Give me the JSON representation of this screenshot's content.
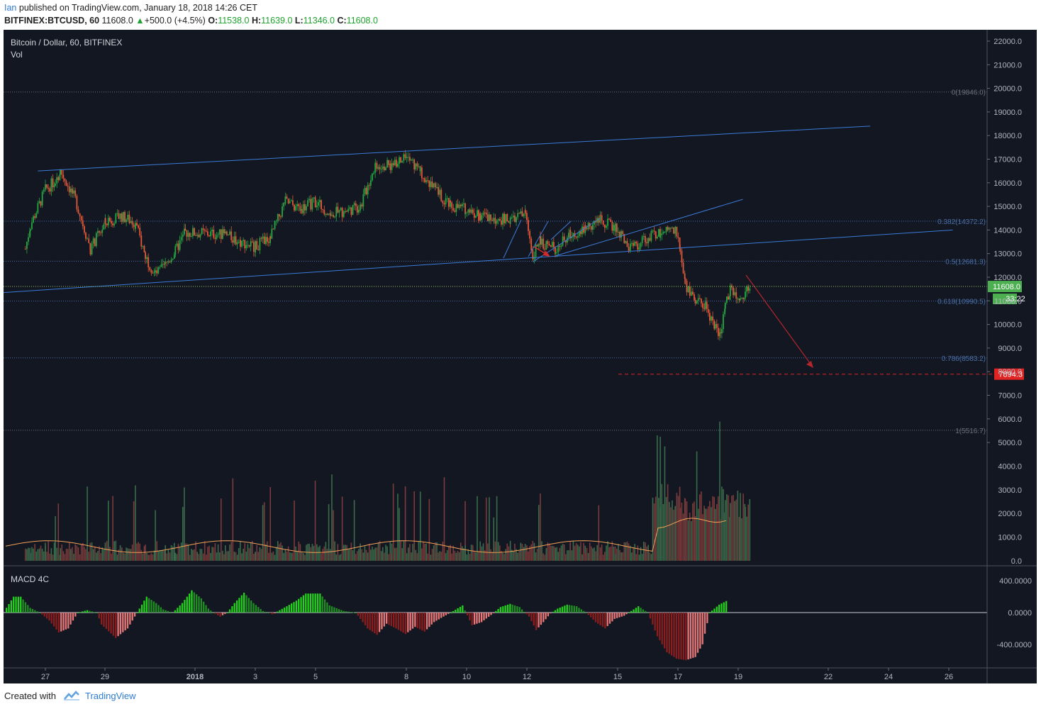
{
  "header": {
    "user": "Ian",
    "published": "published on TradingView.com, January 18, 2018 14:26 CET",
    "symbol": "BITFINEX:BTCUSD, 60",
    "last": "11608.0",
    "change_arrow": "▲",
    "change": "+500.0 (+4.5%)",
    "o_label": "O:",
    "o": "11538.0",
    "h_label": "H:",
    "h": "11639.0",
    "l_label": "L:",
    "l": "11346.0",
    "c_label": "C:",
    "c": "11608.0"
  },
  "legend": {
    "title": "Bitcoin / Dollar, 60, BITFINEX",
    "vol": "Vol",
    "macd": "MACD 4C"
  },
  "footer": {
    "created": "Created with",
    "brand": "TradingView",
    "logo_icon": "tradingview-logo-icon"
  },
  "colors": {
    "bg": "#131722",
    "up": "#26a641",
    "down": "#e05a3a",
    "trend": "#3c7bd8",
    "fib": "#4a6fa8",
    "target": "#e02424",
    "macd_green": "#21d11a",
    "macd_red": "#b83b3b"
  },
  "chart_data": {
    "type": "candlestick",
    "title": "Bitcoin / Dollar, 60, BITFINEX",
    "price_axis": {
      "range": [
        4000,
        22000
      ],
      "ticks": [
        "22000.0",
        "21000.0",
        "20000.0",
        "19000.0",
        "18000.0",
        "17000.0",
        "16000.0",
        "15000.0",
        "14000.0",
        "13000.0",
        "12000.0",
        "11000.0",
        "10000.0",
        "9000.0",
        "8000.0",
        "7000.0",
        "6000.0",
        "5000.0"
      ]
    },
    "volume_axis": {
      "range": [
        0,
        5000
      ],
      "ticks": [
        "4000.0",
        "3000.0",
        "2000.0",
        "1000.0",
        "0.0"
      ]
    },
    "macd_axis": {
      "ticks": [
        "400.0000",
        "0.0000",
        "-400.0000"
      ]
    },
    "x_ticks": [
      "27",
      "29",
      "2018",
      "3",
      "5",
      "8",
      "10",
      "12",
      "15",
      "17",
      "19",
      "22",
      "24",
      "26"
    ],
    "price_path": [
      [
        "Dec 26 08:00",
        13200
      ],
      [
        "Dec 26 12:00",
        14200
      ],
      [
        "Dec 27 00:00",
        15700
      ],
      [
        "Dec 27 08:00",
        16100
      ],
      [
        "Dec 27 12:00",
        16500
      ],
      [
        "Dec 28 00:00",
        15300
      ],
      [
        "Dec 28 12:00",
        13200
      ],
      [
        "Dec 29 00:00",
        14300
      ],
      [
        "Dec 29 12:00",
        14600
      ],
      [
        "Dec 30 00:00",
        14300
      ],
      [
        "Dec 30 08:00",
        12900
      ],
      [
        "Dec 30 16:00",
        12100
      ],
      [
        "Dec 31 00:00",
        12500
      ],
      [
        "Dec 31 08:00",
        13100
      ],
      [
        "Dec 31 16:00",
        13900
      ],
      [
        "Jan 1 00:00",
        13800
      ],
      [
        "Jan 1 12:00",
        13500
      ],
      [
        "Jan 2 00:00",
        13300
      ],
      [
        "Jan 2 12:00",
        13700
      ],
      [
        "Jan 3 00:00",
        15200
      ],
      [
        "Jan 3 12:00",
        14900
      ],
      [
        "Jan 4 00:00",
        15200
      ],
      [
        "Jan 4 12:00",
        14700
      ],
      [
        "Jan 5 00:00",
        14800
      ],
      [
        "Jan 5 12:00",
        15000
      ],
      [
        "Jan 6 00:00",
        16800
      ],
      [
        "Jan 6 12:00",
        16700
      ],
      [
        "Jan 7 00:00",
        17100
      ],
      [
        "Jan 7 12:00",
        16500
      ],
      [
        "Jan 8 00:00",
        15700
      ],
      [
        "Jan 8 12:00",
        15000
      ],
      [
        "Jan 9 00:00",
        14900
      ],
      [
        "Jan 9 12:00",
        14600
      ],
      [
        "Jan 10 00:00",
        14500
      ],
      [
        "Jan 10 12:00",
        14400
      ],
      [
        "Jan 11 00:00",
        14700
      ],
      [
        "Jan 11 06:00",
        13000
      ],
      [
        "Jan 11 12:00",
        13500
      ],
      [
        "Jan 12 00:00",
        13200
      ],
      [
        "Jan 12 12:00",
        13800
      ],
      [
        "Jan 13 00:00",
        14100
      ],
      [
        "Jan 13 12:00",
        14400
      ],
      [
        "Jan 14 00:00",
        14100
      ],
      [
        "Jan 14 12:00",
        13200
      ],
      [
        "Jan 15 00:00",
        13600
      ],
      [
        "Jan 15 12:00",
        13900
      ],
      [
        "Jan 16 00:00",
        14100
      ],
      [
        "Jan 16 04:00",
        13100
      ],
      [
        "Jan 16 08:00",
        11700
      ],
      [
        "Jan 16 16:00",
        11000
      ],
      [
        "Jan 17 00:00",
        10800
      ],
      [
        "Jan 17 08:00",
        9900
      ],
      [
        "Jan 17 12:00",
        9500
      ],
      [
        "Jan 17 16:00",
        10800
      ],
      [
        "Jan 17 20:00",
        11500
      ],
      [
        "Jan 18 04:00",
        11000
      ],
      [
        "Jan 18 08:00",
        11400
      ],
      [
        "Jan 18 12:00",
        11608
      ]
    ],
    "fib_levels": [
      {
        "label": "0(19846.0)",
        "value": 19846.0
      },
      {
        "label": "0.382(14372.2)",
        "value": 14372.2
      },
      {
        "label": "0.5(12681.3)",
        "value": 12681.3
      },
      {
        "label": "0.618(10990.5)",
        "value": 10990.5
      },
      {
        "label": "0.786(8583.2)",
        "value": 8583.2
      },
      {
        "label": "1(5516.7)",
        "value": 5516.7
      }
    ],
    "last_price": {
      "label": "11608.0",
      "value": 11608.0,
      "countdown": "33:22"
    },
    "target": {
      "label": "7894.3",
      "value": 7894.3
    },
    "trendlines": [
      {
        "from": [
          "Dec 26 18:00",
          16500
        ],
        "to": [
          "Jan 22 12:00",
          18400
        ]
      },
      {
        "from": [
          "Dec 25 00:00",
          11300
        ],
        "to": [
          "Jan 25 06:00",
          14000
        ]
      },
      {
        "from": [
          "Jan 11 06:00",
          12650
        ],
        "to": [
          "Jan 13 12:00",
          14500
        ]
      },
      {
        "from": [
          "Jan 12 00:00",
          12900
        ],
        "to": [
          "Jan 18 06:00",
          15300
        ]
      }
    ],
    "macd": {
      "series": [
        {
          "name": "",
          "values": [
            [
              0,
              60
            ],
            [
              3,
              200
            ],
            [
              6,
              200
            ],
            [
              10,
              60
            ],
            [
              14,
              0
            ],
            [
              18,
              -100
            ],
            [
              22,
              -250
            ],
            [
              26,
              -200
            ],
            [
              30,
              0
            ],
            [
              34,
              30
            ],
            [
              38,
              0
            ],
            [
              40,
              -150
            ],
            [
              46,
              -320
            ],
            [
              51,
              -200
            ],
            [
              55,
              0
            ],
            [
              59,
              200
            ],
            [
              63,
              120
            ],
            [
              66,
              40
            ],
            [
              70,
              0
            ],
            [
              74,
              120
            ],
            [
              78,
              280
            ],
            [
              82,
              180
            ],
            [
              85,
              50
            ],
            [
              87,
              0
            ],
            [
              90,
              -50
            ],
            [
              93,
              0
            ],
            [
              96,
              120
            ],
            [
              100,
              250
            ],
            [
              104,
              120
            ],
            [
              108,
              20
            ],
            [
              112,
              -20
            ],
            [
              118,
              80
            ],
            [
              122,
              150
            ],
            [
              126,
              240
            ],
            [
              132,
              240
            ],
            [
              136,
              90
            ],
            [
              142,
              20
            ],
            [
              147,
              0
            ],
            [
              152,
              -200
            ],
            [
              156,
              -280
            ],
            [
              160,
              -140
            ],
            [
              164,
              -200
            ],
            [
              168,
              -270
            ],
            [
              172,
              -180
            ],
            [
              176,
              -240
            ],
            [
              180,
              -120
            ],
            [
              184,
              -50
            ],
            [
              187,
              0
            ],
            [
              192,
              90
            ],
            [
              196,
              -160
            ],
            [
              200,
              -120
            ],
            [
              204,
              -30
            ],
            [
              208,
              70
            ],
            [
              212,
              110
            ],
            [
              216,
              70
            ],
            [
              220,
              -50
            ],
            [
              223,
              -220
            ],
            [
              226,
              -120
            ],
            [
              229,
              -10
            ],
            [
              232,
              50
            ],
            [
              236,
              100
            ],
            [
              240,
              80
            ],
            [
              244,
              0
            ],
            [
              248,
              -120
            ],
            [
              252,
              -200
            ],
            [
              256,
              -80
            ],
            [
              260,
              -40
            ],
            [
              262,
              0
            ],
            [
              266,
              80
            ],
            [
              270,
              0
            ],
            [
              274,
              -300
            ],
            [
              278,
              -500
            ],
            [
              282,
              -580
            ],
            [
              286,
              -600
            ],
            [
              290,
              -560
            ],
            [
              293,
              -400
            ],
            [
              296,
              0
            ],
            [
              300,
              100
            ],
            [
              304,
              160
            ]
          ]
        }
      ]
    }
  }
}
